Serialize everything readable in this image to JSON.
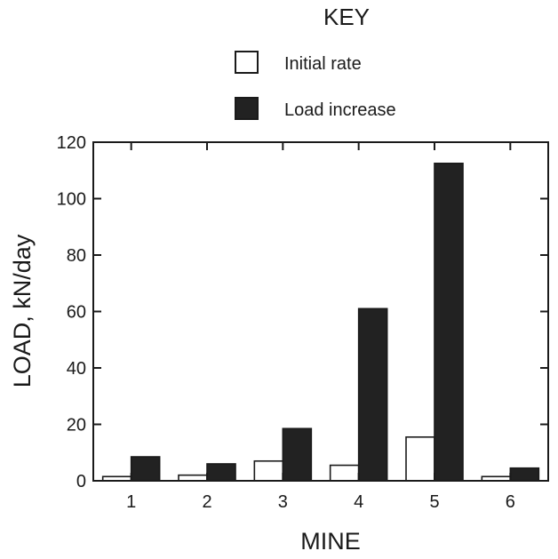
{
  "colors": {
    "initial_fill": "#ffffff",
    "increase_fill": "#222222",
    "ink": "#1a1a1a"
  },
  "chart_data": {
    "type": "bar",
    "title": "KEY",
    "xlabel": "MINE",
    "ylabel": "LOAD, kN/day",
    "categories": [
      "1",
      "2",
      "3",
      "4",
      "5",
      "6"
    ],
    "series": [
      {
        "name": "Initial rate",
        "values": [
          1.5,
          2,
          7,
          5.5,
          15.5,
          1.5
        ]
      },
      {
        "name": "Load increase",
        "values": [
          8.5,
          6,
          18.5,
          61,
          112.5,
          4.5
        ]
      }
    ],
    "ylim": [
      0,
      120
    ],
    "yticks": [
      0,
      20,
      40,
      60,
      80,
      100,
      120
    ],
    "legend_placement": "top-center",
    "grid": false
  }
}
